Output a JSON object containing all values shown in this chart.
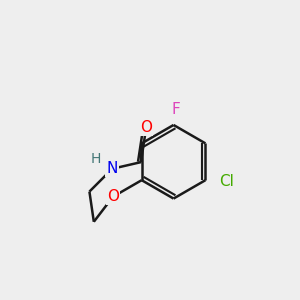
{
  "background_color": "#eeeeee",
  "bond_color": "#1a1a1a",
  "bond_width": 1.8,
  "atom_colors": {
    "O_carbonyl": "#ff0000",
    "O_ring": "#ff0000",
    "N": "#0000ee",
    "F": "#dd44bb",
    "Cl": "#44aa00",
    "H": "#447777",
    "C": "#1a1a1a"
  },
  "font_size_atoms": 11,
  "font_size_H": 10
}
